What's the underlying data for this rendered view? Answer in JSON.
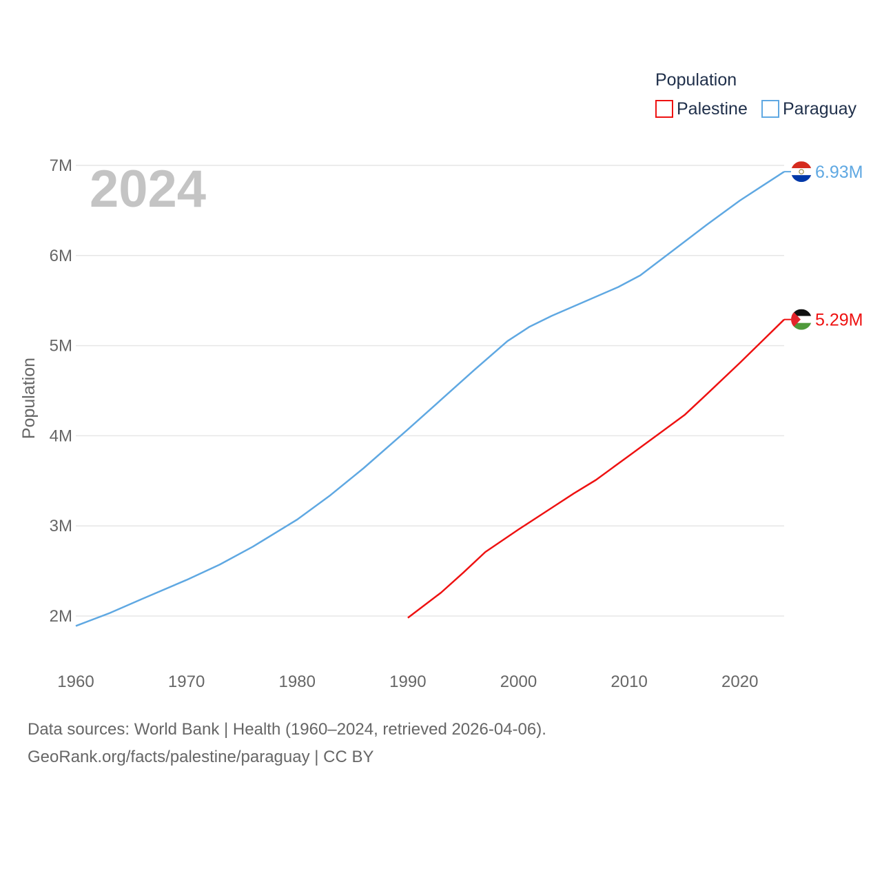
{
  "chart_data": {
    "type": "line",
    "title": "",
    "xlabel": "",
    "ylabel": "Population",
    "xlim": [
      1960,
      2024
    ],
    "ylim": [
      1.8,
      7.0
    ],
    "yticks": [
      2,
      3,
      4,
      5,
      6,
      7
    ],
    "ytick_labels": [
      "2M",
      "3M",
      "4M",
      "5M",
      "6M",
      "7M"
    ],
    "xticks": [
      1960,
      1970,
      1980,
      1990,
      2000,
      2010,
      2020
    ],
    "xtick_labels": [
      "1960",
      "1970",
      "1980",
      "1990",
      "2000",
      "2010",
      "2020"
    ],
    "legend_title": "Population",
    "legend_position": "top-right",
    "year_display": "2024",
    "series": [
      {
        "name": "Palestine",
        "color": "#ee1111",
        "end_label": "5.29M",
        "flag_icon": "palestine-flag-icon",
        "x": [
          1990,
          1993,
          1995,
          1997,
          2000,
          2003,
          2005,
          2007,
          2010,
          2013,
          2015,
          2017,
          2020,
          2022,
          2024
        ],
        "y": [
          1.98,
          2.26,
          2.48,
          2.71,
          2.96,
          3.2,
          3.36,
          3.51,
          3.78,
          4.05,
          4.23,
          4.46,
          4.81,
          5.05,
          5.29
        ]
      },
      {
        "name": "Paraguay",
        "color": "#5fa8e2",
        "end_label": "6.93M",
        "flag_icon": "paraguay-flag-icon",
        "x": [
          1960,
          1963,
          1966,
          1970,
          1973,
          1976,
          1980,
          1983,
          1986,
          1990,
          1993,
          1996,
          1999,
          2001,
          2003,
          2006,
          2009,
          2011,
          2014,
          2017,
          2020,
          2022,
          2024
        ],
        "y": [
          1.89,
          2.03,
          2.19,
          2.4,
          2.57,
          2.77,
          3.07,
          3.34,
          3.64,
          4.07,
          4.4,
          4.73,
          5.05,
          5.21,
          5.33,
          5.49,
          5.65,
          5.78,
          6.06,
          6.34,
          6.61,
          6.77,
          6.93
        ]
      }
    ]
  },
  "footer": {
    "source_line": "Data sources: World Bank | Health (1960–2024, retrieved 2026-04-06).",
    "credit_line": "GeoRank.org/facts/palestine/paraguay | CC BY"
  }
}
